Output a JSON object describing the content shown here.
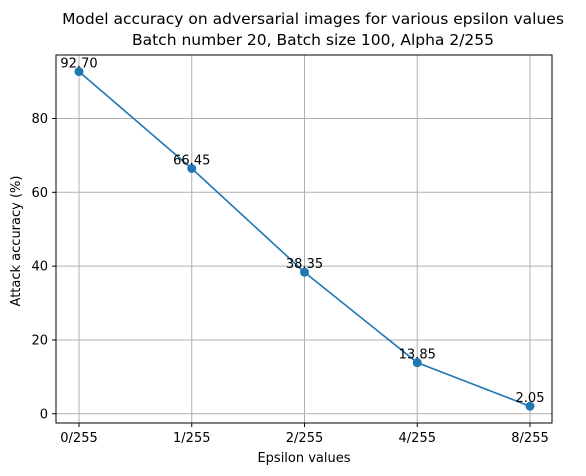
{
  "chart_data": {
    "type": "line",
    "title": [
      "Model accuracy on adversarial images for various epsilon values",
      "Batch number 20, Batch size 100, Alpha 2/255"
    ],
    "xlabel": "Epsilon values",
    "ylabel": "Attack accuracy (%)",
    "categories": [
      "0/255",
      "1/255",
      "2/255",
      "4/255",
      "8/255"
    ],
    "values": [
      92.7,
      66.45,
      38.35,
      13.85,
      2.05
    ],
    "data_labels": [
      "92.70",
      "66.45",
      "38.35",
      "13.85",
      "2.05"
    ],
    "yticks": [
      0,
      20,
      40,
      60,
      80
    ],
    "ylim": [
      -2.5,
      97.2
    ],
    "grid": true,
    "line_color": "#1f77b4",
    "marker": "circle"
  }
}
